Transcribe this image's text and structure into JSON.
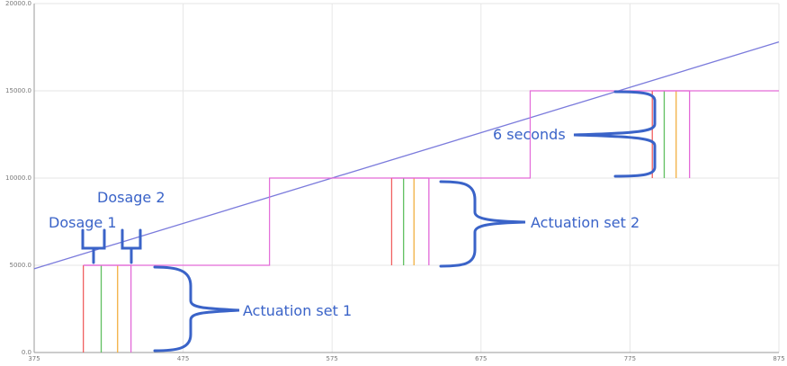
{
  "chart_data": {
    "type": "line",
    "xlim": [
      375,
      875
    ],
    "ylim": [
      0,
      20000
    ],
    "xticks": [
      "375",
      "475",
      "575",
      "675",
      "775",
      "875"
    ],
    "yticks": [
      "0.0",
      "5000.0",
      "10000.0",
      "15000.0",
      "20000.0"
    ],
    "grid": true,
    "series": [
      {
        "color": "#7b7bdc",
        "x": [
          375,
          875
        ],
        "y": [
          4800,
          17800
        ]
      },
      {
        "color": "#e36ad8",
        "x": [
          408,
          533,
          533,
          708,
          708,
          875
        ],
        "y": [
          5000,
          5000,
          10000,
          10000,
          15000,
          15000
        ]
      }
    ],
    "actuation_sets": [
      {
        "x": [
          408,
          420,
          431,
          440
        ],
        "colors": [
          "#f06060",
          "#5fbf5f",
          "#f2b040",
          "#e36ad8"
        ],
        "y_top": 5000
      },
      {
        "x": [
          615,
          623,
          630,
          640
        ],
        "colors": [
          "#f06060",
          "#5fbf5f",
          "#f2b040",
          "#e36ad8"
        ],
        "y_bottom": 5000,
        "y_top": 10000
      },
      {
        "x": [
          790,
          798,
          806,
          815
        ],
        "colors": [
          "#f06060",
          "#5fbf5f",
          "#f2b040",
          "#e36ad8"
        ],
        "y_bottom": 10000,
        "y_top": 15000
      }
    ],
    "annotations": [
      "Dosage 1",
      "Dosage 2",
      "Actuation set 1",
      "Actuation set 2",
      "6 seconds"
    ],
    "annotation_color": "#3a63c8"
  }
}
